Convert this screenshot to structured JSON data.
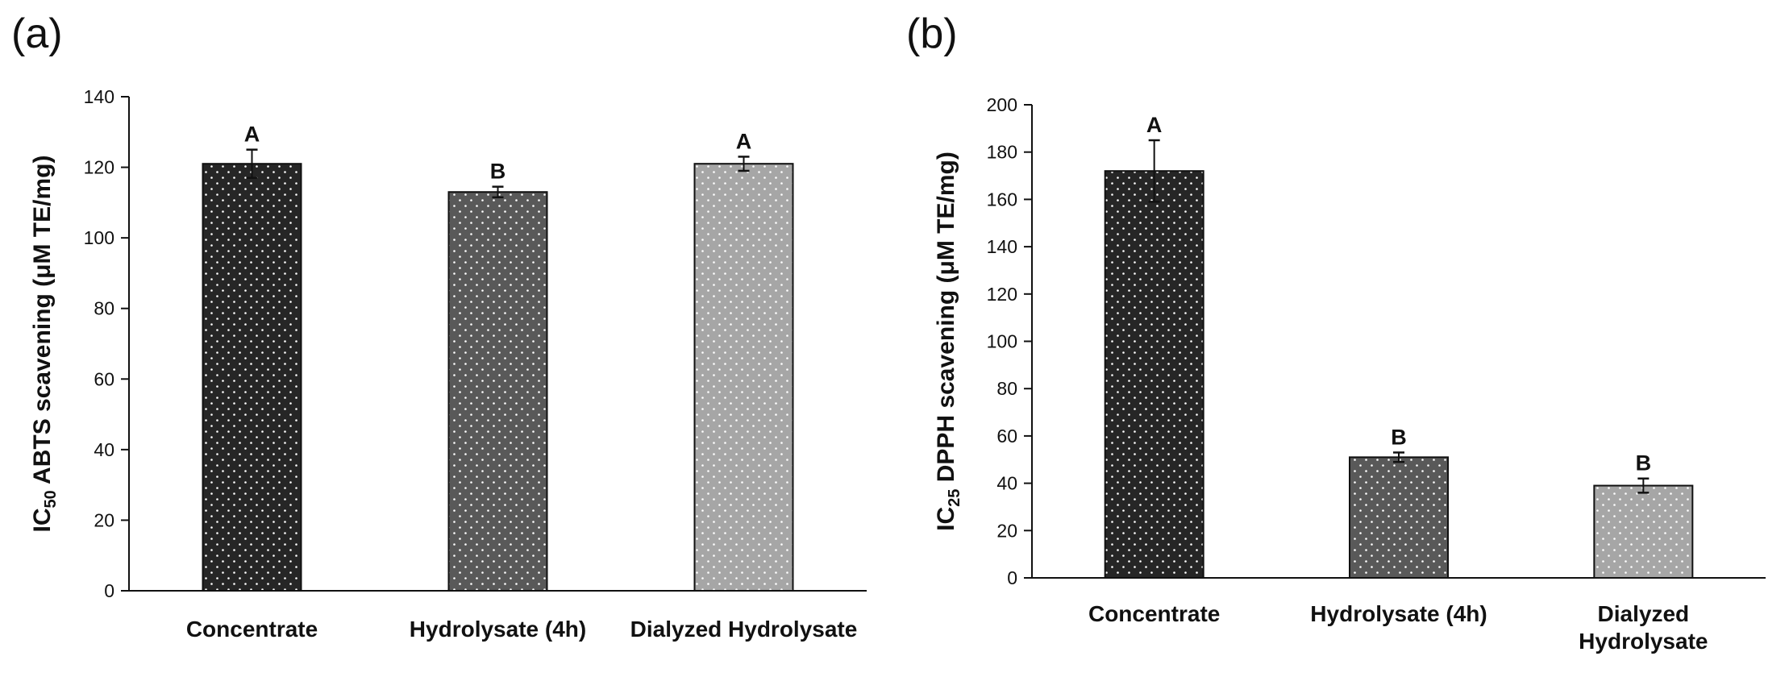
{
  "chart_data": [
    {
      "panel": "(a)",
      "type": "bar",
      "categories": [
        "Concentrate",
        "Hydrolysate (4h)",
        "Dialyzed Hydrolysate"
      ],
      "values": [
        121,
        113,
        121
      ],
      "errors": [
        4,
        1.5,
        2
      ],
      "significance": [
        "A",
        "B",
        "A"
      ],
      "colors": [
        "#262626",
        "#595959",
        "#a6a6a6"
      ],
      "ylabel_main": "IC",
      "ylabel_sub": "50",
      "ylabel_rest": " ABTS scavening (μM TE/mg)",
      "ylim": [
        0,
        140
      ],
      "yticks": [
        0,
        20,
        40,
        60,
        80,
        100,
        120,
        140
      ],
      "grid": false
    },
    {
      "panel": "(b)",
      "type": "bar",
      "categories": [
        "Concentrate",
        "Hydrolysate (4h)",
        "Dialyzed Hydrolysate"
      ],
      "category_lines": [
        [
          "Concentrate"
        ],
        [
          "Hydrolysate (4h)"
        ],
        [
          "Dialyzed",
          "Hydrolysate"
        ]
      ],
      "values": [
        172,
        51,
        39
      ],
      "errors": [
        13,
        2,
        3
      ],
      "significance": [
        "A",
        "B",
        "B"
      ],
      "colors": [
        "#262626",
        "#595959",
        "#a6a6a6"
      ],
      "ylabel_main": "IC",
      "ylabel_sub": "25",
      "ylabel_rest": " DPPH scavening (μM TE/mg)",
      "ylim": [
        0,
        200
      ],
      "yticks": [
        0,
        20,
        40,
        60,
        80,
        100,
        120,
        140,
        160,
        180,
        200
      ],
      "grid": false
    }
  ]
}
